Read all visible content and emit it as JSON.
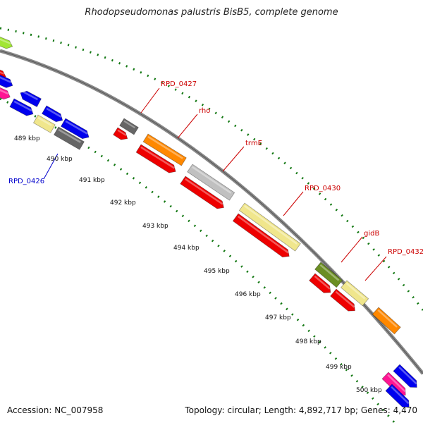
{
  "title": "Rhodopseudomonas palustris BisB5, complete genome",
  "footer": {
    "accession": "Accession: NC_007958",
    "summary": "Topology: circular; Length: 4,892,717 bp; Genes: 4,470"
  },
  "scale_labels": [
    "489 kbp",
    "490 kbp",
    "491 kbp",
    "492 kbp",
    "493 kbp",
    "494 kbp",
    "495 kbp",
    "496 kbp",
    "497 kbp",
    "498 kbp",
    "499 kbp",
    "500 kbp"
  ],
  "gene_labels": [
    {
      "text": "RPD_0427",
      "color": "#cc0000"
    },
    {
      "text": "rho",
      "color": "#cc0000"
    },
    {
      "text": "trmE",
      "color": "#cc0000"
    },
    {
      "text": "RPD_0430",
      "color": "#cc0000"
    },
    {
      "text": "gidB",
      "color": "#cc0000"
    },
    {
      "text": "RPD_0432",
      "color": "#cc0000"
    },
    {
      "text": "RPD_0426",
      "color": "#0000cc"
    }
  ],
  "colors": {
    "backbone": "#888888",
    "tick": "#117711",
    "red": "#ee0000",
    "blue": "#0000ee",
    "orange": "#ff8800",
    "gray_dark": "#666666",
    "gray_light": "#c0c0c0",
    "khaki": "#f0e68c",
    "olive": "#6b8e23",
    "magenta": "#ff1493",
    "lime": "#a2e635"
  }
}
